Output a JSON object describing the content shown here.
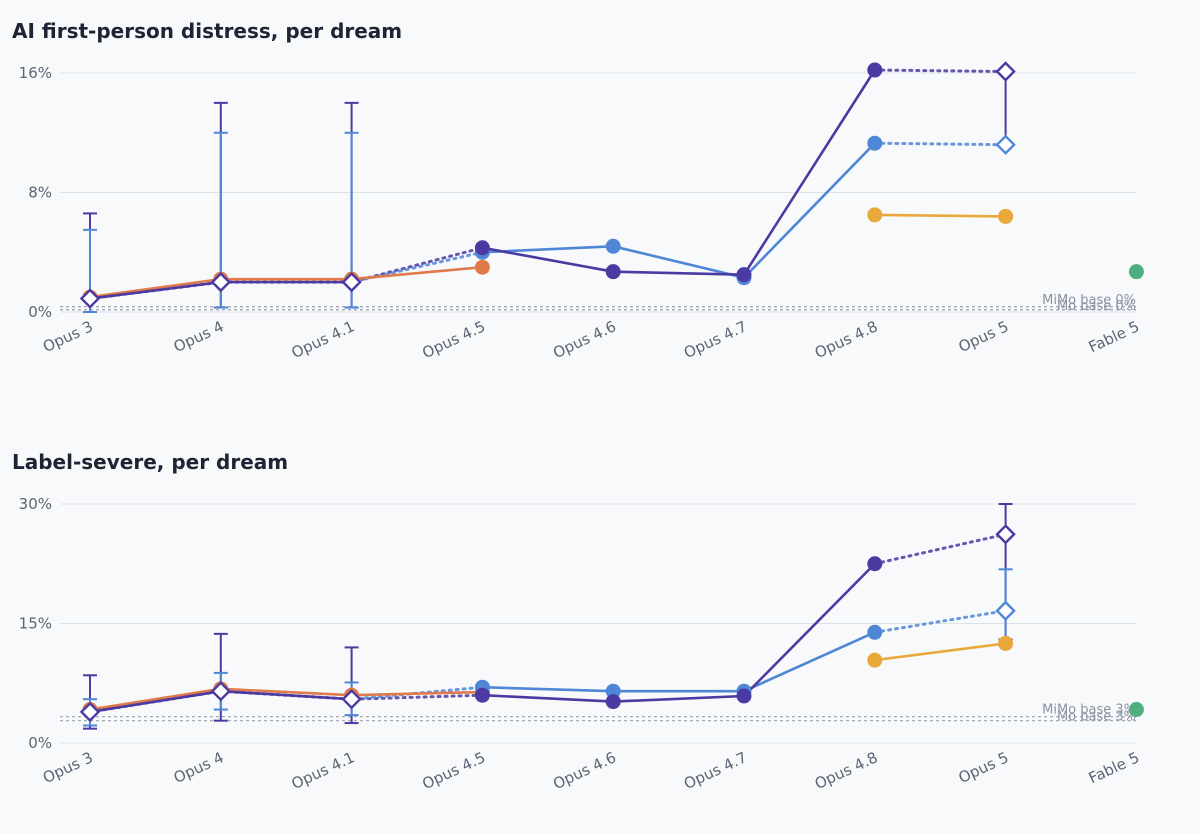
{
  "chart_data": [
    {
      "type": "line",
      "title": "AI first-person distress, per dream",
      "xlabel": "",
      "ylabel": "",
      "categories": [
        "Opus 3",
        "Opus 4",
        "Opus 4.1",
        "Opus 4.5",
        "Opus 4.6",
        "Opus 4.7",
        "Opus 4.8",
        "Opus 5",
        "Fable 5"
      ],
      "ylim": [
        0,
        16.5
      ],
      "ytick_values": [
        0,
        8,
        16
      ],
      "ytick_labels": [
        "0%",
        "8%",
        "16%"
      ],
      "grid": true,
      "series": [
        {
          "color": "#e07a4a",
          "marker": "circle",
          "style": "solid",
          "values": [
            1.0,
            2.2,
            2.2,
            3.0,
            null,
            null,
            null,
            null,
            null
          ]
        },
        {
          "color": "#4f86d6",
          "marker": "circle",
          "style": "solid",
          "values": [
            null,
            null,
            null,
            4.0,
            4.4,
            2.3,
            11.3,
            null,
            null
          ]
        },
        {
          "color": "#4b3aa2",
          "marker": "circle",
          "style": "solid",
          "values": [
            null,
            null,
            null,
            4.3,
            2.7,
            2.5,
            16.2,
            null,
            null
          ]
        },
        {
          "color": "#e9a93a",
          "marker": "circle",
          "style": "solid",
          "values": [
            null,
            null,
            null,
            null,
            null,
            null,
            6.5,
            6.4,
            null
          ]
        },
        {
          "color": "#4f86d6",
          "marker": "open-diamond",
          "style": "solid",
          "values": [
            null,
            null,
            null,
            null,
            null,
            null,
            null,
            11.2,
            null
          ]
        },
        {
          "color": "#4b3aa2",
          "marker": "open-diamond",
          "style": "solid",
          "values": [
            0.9,
            2.0,
            2.0,
            null,
            null,
            null,
            null,
            16.1,
            null
          ]
        },
        {
          "color": "#4caf7d",
          "marker": "circle",
          "style": "solid",
          "values": [
            null,
            null,
            null,
            null,
            null,
            null,
            null,
            null,
            2.7
          ]
        }
      ],
      "dotted_links": [
        {
          "color": "#4b3aa2",
          "points": [
            [
              0,
              0.9
            ],
            [
              1,
              2.0
            ],
            [
              2,
              2.0
            ],
            [
              3,
              4.3
            ]
          ]
        },
        {
          "color": "#4f86d6",
          "points": [
            [
              2,
              2.0
            ],
            [
              3,
              4.0
            ]
          ]
        },
        {
          "color": "#4b3aa2",
          "points": [
            [
              6,
              16.2
            ],
            [
              7,
              16.1
            ]
          ]
        },
        {
          "color": "#4f86d6",
          "points": [
            [
              6,
              11.3
            ],
            [
              7,
              11.2
            ]
          ]
        }
      ],
      "error_bars": [
        {
          "color": "#4b3aa2",
          "x": 0,
          "low": 0.0,
          "high": 6.6
        },
        {
          "color": "#4f86d6",
          "x": 0,
          "low": 0.0,
          "high": 5.5
        },
        {
          "color": "#4b3aa2",
          "x": 1,
          "low": 0.3,
          "high": 14.0
        },
        {
          "color": "#4f86d6",
          "x": 1,
          "low": 0.3,
          "high": 12.0
        },
        {
          "color": "#4b3aa2",
          "x": 2,
          "low": 0.3,
          "high": 14.0
        },
        {
          "color": "#4f86d6",
          "x": 2,
          "low": 0.3,
          "high": 12.0
        },
        {
          "color": "#4b3aa2",
          "x": 7,
          "low": 11.2,
          "high": 16.1
        }
      ],
      "ref_lines": [
        {
          "label": "MiMo base 0%",
          "value": 0.35
        },
        {
          "label": "Mo base 0%",
          "value": 0.15
        }
      ]
    },
    {
      "type": "line",
      "title": "Label-severe, per dream",
      "xlabel": "",
      "ylabel": "",
      "categories": [
        "Opus 3",
        "Opus 4",
        "Opus 4.1",
        "Opus 4.5",
        "Opus 4.6",
        "Opus 4.7",
        "Opus 4.8",
        "Opus 5",
        "Fable 5"
      ],
      "ylim": [
        0,
        30.5
      ],
      "ytick_values": [
        0,
        15,
        30
      ],
      "ytick_labels": [
        "0%",
        "15%",
        "30%"
      ],
      "grid": true,
      "series": [
        {
          "color": "#e07a4a",
          "marker": "circle",
          "style": "solid",
          "values": [
            4.2,
            6.8,
            6.0,
            6.4,
            null,
            null,
            null,
            null,
            null
          ]
        },
        {
          "color": "#4f86d6",
          "marker": "circle",
          "style": "solid",
          "values": [
            null,
            null,
            null,
            7.0,
            6.5,
            6.5,
            13.9,
            null,
            null
          ]
        },
        {
          "color": "#4b3aa2",
          "marker": "circle",
          "style": "solid",
          "values": [
            null,
            null,
            null,
            6.0,
            5.2,
            5.9,
            22.5,
            null,
            null
          ]
        },
        {
          "color": "#e9a93a",
          "marker": "circle",
          "style": "solid",
          "values": [
            null,
            null,
            null,
            null,
            null,
            null,
            10.4,
            12.5,
            null
          ]
        },
        {
          "color": "#4f86d6",
          "marker": "open-diamond",
          "style": "solid",
          "values": [
            null,
            null,
            null,
            null,
            null,
            null,
            null,
            16.6,
            null
          ]
        },
        {
          "color": "#4b3aa2",
          "marker": "open-diamond",
          "style": "solid",
          "values": [
            3.9,
            6.5,
            5.5,
            null,
            null,
            null,
            null,
            26.2,
            null
          ]
        },
        {
          "color": "#4caf7d",
          "marker": "circle",
          "style": "solid",
          "values": [
            null,
            null,
            null,
            null,
            null,
            null,
            null,
            null,
            4.2
          ]
        }
      ],
      "dotted_links": [
        {
          "color": "#4b3aa2",
          "points": [
            [
              0,
              3.9
            ],
            [
              1,
              6.5
            ],
            [
              2,
              5.5
            ],
            [
              3,
              6.0
            ]
          ]
        },
        {
          "color": "#4f86d6",
          "points": [
            [
              2,
              5.5
            ],
            [
              3,
              7.0
            ]
          ]
        },
        {
          "color": "#4b3aa2",
          "points": [
            [
              6,
              22.5
            ],
            [
              7,
              26.2
            ]
          ]
        },
        {
          "color": "#4f86d6",
          "points": [
            [
              6,
              13.9
            ],
            [
              7,
              16.6
            ]
          ]
        }
      ],
      "error_bars": [
        {
          "color": "#4b3aa2",
          "x": 0,
          "low": 1.8,
          "high": 8.5
        },
        {
          "color": "#4f86d6",
          "x": 0,
          "low": 2.2,
          "high": 5.5
        },
        {
          "color": "#4b3aa2",
          "x": 1,
          "low": 2.8,
          "high": 13.7
        },
        {
          "color": "#4f86d6",
          "x": 1,
          "low": 4.2,
          "high": 8.8
        },
        {
          "color": "#4b3aa2",
          "x": 2,
          "low": 2.5,
          "high": 12.0
        },
        {
          "color": "#4f86d6",
          "x": 2,
          "low": 3.5,
          "high": 7.6
        },
        {
          "color": "#4b3aa2",
          "x": 7,
          "low": 13.0,
          "high": 30.0
        },
        {
          "color": "#4f86d6",
          "x": 7,
          "low": 12.5,
          "high": 21.8
        }
      ],
      "ref_lines": [
        {
          "label": "MiMo base 3%",
          "value": 3.3
        },
        {
          "label": "Mo base 3%",
          "value": 2.8
        }
      ]
    }
  ]
}
